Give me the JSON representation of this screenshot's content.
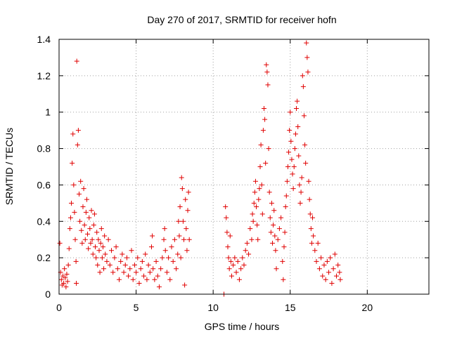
{
  "chart_data": {
    "type": "scatter",
    "title": "Day 270 of 2017, SRMTID for receiver hofn",
    "xlabel": "GPS time / hours",
    "ylabel": "SRMTID / TECUs",
    "xlim": [
      0,
      24
    ],
    "ylim": [
      0,
      1.4
    ],
    "xticks": [
      0,
      5,
      10,
      15,
      20
    ],
    "xtick_labels": [
      "0",
      "5",
      "10",
      "15",
      "20"
    ],
    "yticks": [
      0,
      0.2,
      0.4,
      0.6,
      0.8,
      1,
      1.2,
      1.4
    ],
    "ytick_labels": [
      "0",
      "0.2",
      "0.4",
      "0.6",
      "0.8",
      "1",
      "1.2",
      "1.4"
    ],
    "grid": true,
    "marker": "plus",
    "color": "#e00000",
    "series": [
      {
        "name": "SRMTID",
        "points": [
          [
            0.05,
            0.28
          ],
          [
            0.1,
            0.12
          ],
          [
            0.15,
            0.08
          ],
          [
            0.2,
            0.05
          ],
          [
            0.25,
            0.1
          ],
          [
            0.3,
            0.06
          ],
          [
            0.35,
            0.14
          ],
          [
            0.4,
            0.09
          ],
          [
            0.45,
            0.04
          ],
          [
            0.5,
            0.11
          ],
          [
            0.55,
            0.07
          ],
          [
            0.6,
            0.16
          ],
          [
            0.65,
            0.25
          ],
          [
            0.7,
            0.36
          ],
          [
            0.75,
            0.42
          ],
          [
            0.8,
            0.5
          ],
          [
            0.85,
            0.72
          ],
          [
            0.9,
            0.88
          ],
          [
            0.95,
            0.6
          ],
          [
            1.0,
            0.45
          ],
          [
            1.05,
            0.3
          ],
          [
            1.1,
            0.18
          ],
          [
            1.12,
            0.06
          ],
          [
            1.15,
            1.28
          ],
          [
            1.2,
            0.82
          ],
          [
            1.25,
            0.9
          ],
          [
            1.3,
            0.55
          ],
          [
            1.35,
            0.4
          ],
          [
            1.4,
            0.62
          ],
          [
            1.45,
            0.35
          ],
          [
            1.5,
            0.28
          ],
          [
            1.55,
            0.48
          ],
          [
            1.6,
            0.58
          ],
          [
            1.65,
            0.38
          ],
          [
            1.7,
            0.3
          ],
          [
            1.75,
            0.45
          ],
          [
            1.8,
            0.52
          ],
          [
            1.85,
            0.33
          ],
          [
            1.9,
            0.25
          ],
          [
            1.95,
            0.42
          ],
          [
            2.0,
            0.36
          ],
          [
            2.05,
            0.28
          ],
          [
            2.1,
            0.46
          ],
          [
            2.15,
            0.3
          ],
          [
            2.2,
            0.22
          ],
          [
            2.25,
            0.38
          ],
          [
            2.3,
            0.44
          ],
          [
            2.35,
            0.26
          ],
          [
            2.4,
            0.2
          ],
          [
            2.45,
            0.34
          ],
          [
            2.5,
            0.16
          ],
          [
            2.55,
            0.3
          ],
          [
            2.6,
            0.24
          ],
          [
            2.65,
            0.12
          ],
          [
            2.7,
            0.28
          ],
          [
            2.75,
            0.36
          ],
          [
            2.8,
            0.2
          ],
          [
            2.85,
            0.26
          ],
          [
            2.9,
            0.14
          ],
          [
            2.95,
            0.32
          ],
          [
            3.0,
            0.22
          ],
          [
            3.1,
            0.18
          ],
          [
            3.2,
            0.3
          ],
          [
            3.3,
            0.16
          ],
          [
            3.4,
            0.24
          ],
          [
            3.5,
            0.12
          ],
          [
            3.6,
            0.2
          ],
          [
            3.7,
            0.26
          ],
          [
            3.8,
            0.14
          ],
          [
            3.9,
            0.08
          ],
          [
            4.0,
            0.18
          ],
          [
            4.1,
            0.22
          ],
          [
            4.2,
            0.12
          ],
          [
            4.3,
            0.16
          ],
          [
            4.4,
            0.2
          ],
          [
            4.5,
            0.1
          ],
          [
            4.6,
            0.14
          ],
          [
            4.7,
            0.24
          ],
          [
            4.8,
            0.08
          ],
          [
            4.9,
            0.16
          ],
          [
            5.0,
            0.12
          ],
          [
            5.1,
            0.2
          ],
          [
            5.2,
            0.06
          ],
          [
            5.3,
            0.14
          ],
          [
            5.4,
            0.18
          ],
          [
            5.5,
            0.1
          ],
          [
            5.6,
            0.22
          ],
          [
            5.7,
            0.08
          ],
          [
            5.8,
            0.16
          ],
          [
            5.9,
            0.12
          ],
          [
            6.0,
            0.26
          ],
          [
            6.05,
            0.32
          ],
          [
            6.1,
            0.14
          ],
          [
            6.2,
            0.08
          ],
          [
            6.3,
            0.18
          ],
          [
            6.4,
            0.1
          ],
          [
            6.5,
            0.04
          ],
          [
            6.6,
            0.14
          ],
          [
            6.7,
            0.2
          ],
          [
            6.8,
            0.3
          ],
          [
            6.85,
            0.36
          ],
          [
            6.9,
            0.24
          ],
          [
            7.0,
            0.12
          ],
          [
            7.1,
            0.2
          ],
          [
            7.2,
            0.08
          ],
          [
            7.3,
            0.26
          ],
          [
            7.4,
            0.18
          ],
          [
            7.5,
            0.3
          ],
          [
            7.6,
            0.14
          ],
          [
            7.7,
            0.22
          ],
          [
            7.75,
            0.4
          ],
          [
            7.8,
            0.32
          ],
          [
            7.85,
            0.48
          ],
          [
            7.9,
            0.2
          ],
          [
            7.95,
            0.64
          ],
          [
            8.0,
            0.58
          ],
          [
            8.05,
            0.4
          ],
          [
            8.1,
            0.3
          ],
          [
            8.15,
            0.05
          ],
          [
            8.2,
            0.52
          ],
          [
            8.25,
            0.36
          ],
          [
            8.3,
            0.24
          ],
          [
            8.35,
            0.46
          ],
          [
            8.4,
            0.56
          ],
          [
            8.45,
            0.3
          ],
          [
            10.7,
            0.0
          ],
          [
            10.8,
            0.48
          ],
          [
            10.85,
            0.42
          ],
          [
            10.9,
            0.34
          ],
          [
            10.95,
            0.26
          ],
          [
            11.0,
            0.2
          ],
          [
            11.05,
            0.14
          ],
          [
            11.1,
            0.32
          ],
          [
            11.15,
            0.18
          ],
          [
            11.2,
            0.1
          ],
          [
            11.3,
            0.16
          ],
          [
            11.4,
            0.2
          ],
          [
            11.5,
            0.12
          ],
          [
            11.6,
            0.18
          ],
          [
            11.7,
            0.08
          ],
          [
            11.8,
            0.14
          ],
          [
            11.9,
            0.2
          ],
          [
            12.0,
            0.16
          ],
          [
            12.1,
            0.24
          ],
          [
            12.2,
            0.28
          ],
          [
            12.3,
            0.22
          ],
          [
            12.4,
            0.36
          ],
          [
            12.5,
            0.3
          ],
          [
            12.55,
            0.44
          ],
          [
            12.6,
            0.4
          ],
          [
            12.65,
            0.5
          ],
          [
            12.7,
            0.56
          ],
          [
            12.75,
            0.62
          ],
          [
            12.8,
            0.48
          ],
          [
            12.85,
            0.38
          ],
          [
            12.9,
            0.3
          ],
          [
            12.95,
            0.52
          ],
          [
            13.0,
            0.58
          ],
          [
            13.05,
            0.7
          ],
          [
            13.1,
            0.82
          ],
          [
            13.15,
            0.6
          ],
          [
            13.2,
            0.44
          ],
          [
            13.25,
            0.9
          ],
          [
            13.3,
            1.02
          ],
          [
            13.35,
            0.96
          ],
          [
            13.4,
            0.72
          ],
          [
            13.45,
            1.26
          ],
          [
            13.5,
            1.22
          ],
          [
            13.55,
            1.15
          ],
          [
            13.6,
            0.8
          ],
          [
            13.65,
            0.56
          ],
          [
            13.7,
            0.42
          ],
          [
            13.75,
            0.34
          ],
          [
            13.8,
            0.5
          ],
          [
            13.85,
            0.28
          ],
          [
            13.9,
            0.38
          ],
          [
            13.95,
            0.46
          ],
          [
            14.0,
            0.32
          ],
          [
            14.05,
            0.24
          ],
          [
            14.1,
            0.14
          ],
          [
            14.2,
            0.3
          ],
          [
            14.3,
            0.36
          ],
          [
            14.4,
            0.42
          ],
          [
            14.5,
            0.18
          ],
          [
            14.55,
            0.08
          ],
          [
            14.6,
            0.26
          ],
          [
            14.65,
            0.34
          ],
          [
            14.7,
            0.48
          ],
          [
            14.75,
            0.54
          ],
          [
            14.8,
            0.62
          ],
          [
            14.85,
            0.7
          ],
          [
            14.9,
            0.78
          ],
          [
            14.95,
            0.9
          ],
          [
            15.0,
            1.0
          ],
          [
            15.05,
            0.84
          ],
          [
            15.1,
            0.74
          ],
          [
            15.15,
            0.66
          ],
          [
            15.2,
            0.58
          ],
          [
            15.25,
            0.7
          ],
          [
            15.3,
            0.8
          ],
          [
            15.35,
            0.88
          ],
          [
            15.4,
            1.02
          ],
          [
            15.45,
            1.06
          ],
          [
            15.5,
            0.92
          ],
          [
            15.55,
            0.76
          ],
          [
            15.6,
            0.6
          ],
          [
            15.65,
            0.5
          ],
          [
            15.7,
            0.56
          ],
          [
            15.75,
            0.64
          ],
          [
            15.8,
            1.2
          ],
          [
            15.85,
            1.14
          ],
          [
            15.9,
            0.98
          ],
          [
            15.95,
            0.82
          ],
          [
            16.0,
            0.72
          ],
          [
            16.05,
            1.38
          ],
          [
            16.1,
            1.3
          ],
          [
            16.15,
            1.22
          ],
          [
            16.2,
            0.62
          ],
          [
            16.25,
            0.52
          ],
          [
            16.3,
            0.44
          ],
          [
            16.35,
            0.36
          ],
          [
            16.4,
            0.28
          ],
          [
            16.45,
            0.42
          ],
          [
            16.5,
            0.32
          ],
          [
            16.6,
            0.24
          ],
          [
            16.7,
            0.18
          ],
          [
            16.8,
            0.28
          ],
          [
            16.9,
            0.14
          ],
          [
            17.0,
            0.2
          ],
          [
            17.1,
            0.1
          ],
          [
            17.2,
            0.16
          ],
          [
            17.3,
            0.08
          ],
          [
            17.4,
            0.18
          ],
          [
            17.5,
            0.12
          ],
          [
            17.6,
            0.2
          ],
          [
            17.7,
            0.06
          ],
          [
            17.8,
            0.14
          ],
          [
            17.9,
            0.22
          ],
          [
            18.0,
            0.1
          ],
          [
            18.1,
            0.16
          ],
          [
            18.2,
            0.12
          ],
          [
            18.25,
            0.08
          ]
        ]
      }
    ]
  }
}
